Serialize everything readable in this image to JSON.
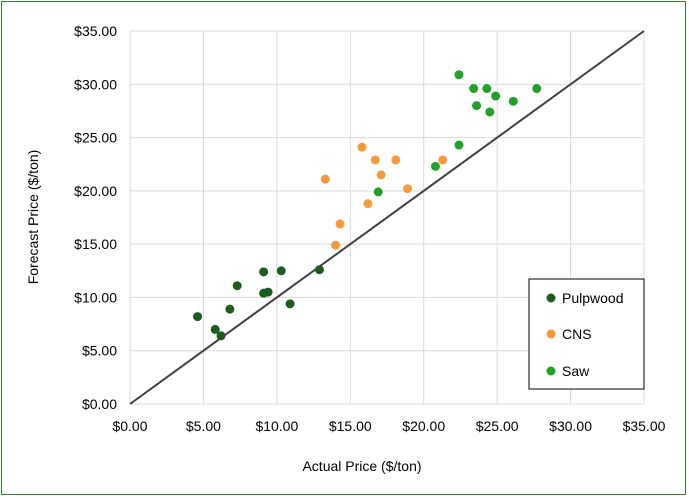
{
  "chart_data": {
    "type": "scatter",
    "title": "",
    "xlabel": "Actual Price ($/ton)",
    "ylabel": "Forecast Price ($/ton)",
    "xlim": [
      0,
      35
    ],
    "ylim": [
      0,
      35
    ],
    "x_ticks": [
      0,
      5,
      10,
      15,
      20,
      25,
      30,
      35
    ],
    "y_ticks": [
      0,
      5,
      10,
      15,
      20,
      25,
      30,
      35
    ],
    "x_tick_labels": [
      "$0.00",
      "$5.00",
      "$10.00",
      "$15.00",
      "$20.00",
      "$25.00",
      "$30.00",
      "$35.00"
    ],
    "y_tick_labels": [
      "$0.00",
      "$5.00",
      "$10.00",
      "$15.00",
      "$20.00",
      "$25.00",
      "$30.00",
      "$35.00"
    ],
    "grid": true,
    "legend_position": "bottom-right",
    "reference_line": {
      "x": [
        0,
        35
      ],
      "y": [
        0,
        35
      ],
      "color": "#404040"
    },
    "series": [
      {
        "name": "Pulpwood",
        "color": "#1e5c1e",
        "points": [
          {
            "x": 4.6,
            "y": 8.2
          },
          {
            "x": 5.8,
            "y": 7.0
          },
          {
            "x": 6.2,
            "y": 6.4
          },
          {
            "x": 6.8,
            "y": 8.9
          },
          {
            "x": 7.3,
            "y": 11.1
          },
          {
            "x": 9.1,
            "y": 12.4
          },
          {
            "x": 9.1,
            "y": 10.4
          },
          {
            "x": 9.4,
            "y": 10.5
          },
          {
            "x": 10.3,
            "y": 12.5
          },
          {
            "x": 10.9,
            "y": 9.4
          },
          {
            "x": 12.9,
            "y": 12.6
          }
        ]
      },
      {
        "name": "CNS",
        "color": "#f79a3c",
        "points": [
          {
            "x": 13.3,
            "y": 21.1
          },
          {
            "x": 14.0,
            "y": 14.9
          },
          {
            "x": 14.3,
            "y": 16.9
          },
          {
            "x": 15.8,
            "y": 24.1
          },
          {
            "x": 16.2,
            "y": 18.8
          },
          {
            "x": 16.7,
            "y": 22.9
          },
          {
            "x": 17.1,
            "y": 21.5
          },
          {
            "x": 18.1,
            "y": 22.9
          },
          {
            "x": 18.9,
            "y": 20.2
          },
          {
            "x": 21.3,
            "y": 22.9
          }
        ]
      },
      {
        "name": "Saw",
        "color": "#22a02a",
        "points": [
          {
            "x": 16.9,
            "y": 19.9
          },
          {
            "x": 20.8,
            "y": 22.3
          },
          {
            "x": 22.4,
            "y": 24.3
          },
          {
            "x": 22.4,
            "y": 30.9
          },
          {
            "x": 23.4,
            "y": 29.6
          },
          {
            "x": 23.6,
            "y": 28.0
          },
          {
            "x": 24.3,
            "y": 29.6
          },
          {
            "x": 24.5,
            "y": 27.4
          },
          {
            "x": 24.9,
            "y": 28.9
          },
          {
            "x": 26.1,
            "y": 28.4
          },
          {
            "x": 27.7,
            "y": 29.6
          }
        ]
      }
    ]
  }
}
